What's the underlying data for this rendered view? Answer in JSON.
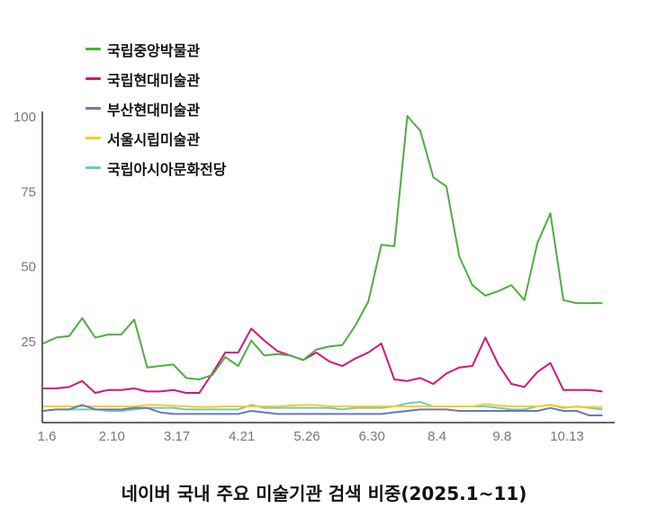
{
  "chart_data": {
    "type": "line",
    "title": "네이버 국내 주요 미술기관 검색 비중(2025.1~11)",
    "xlabel": "",
    "ylabel": "",
    "ylim": [
      0,
      100
    ],
    "yticks": [
      "25",
      "50",
      "75",
      "100"
    ],
    "xticks": [
      {
        "index": 0,
        "label": "1.6"
      },
      {
        "index": 5,
        "label": "2.10"
      },
      {
        "index": 10,
        "label": "3.17"
      },
      {
        "index": 15,
        "label": "4.21"
      },
      {
        "index": 20,
        "label": "5.26"
      },
      {
        "index": 25,
        "label": "6.30"
      },
      {
        "index": 30,
        "label": "8.4"
      },
      {
        "index": 35,
        "label": "9.8"
      },
      {
        "index": 40,
        "label": "10.13"
      }
    ],
    "legend_position": "top-left",
    "series": [
      {
        "name": "국립중앙박물관",
        "color": "#4caf3e",
        "values": [
          24,
          26,
          26.5,
          32.5,
          26,
          27,
          27,
          32,
          16,
          16.5,
          17,
          12.5,
          12,
          13.5,
          19.5,
          16.5,
          25,
          20,
          20.5,
          20,
          18.5,
          22,
          23,
          23.5,
          30,
          38,
          57,
          56.5,
          100,
          95,
          79.5,
          76.5,
          53,
          43.5,
          40,
          41.5,
          43.5,
          38.5,
          57.5,
          67.5,
          38.5,
          37.5,
          37.5,
          37.5
        ]
      },
      {
        "name": "국립현대미술관",
        "color": "#d4147a",
        "values": [
          9,
          9,
          9.5,
          11.5,
          7.5,
          8.5,
          8.5,
          9,
          8,
          8,
          8.5,
          7.5,
          7.5,
          14,
          21,
          21,
          29,
          25,
          21.5,
          20,
          18.5,
          21,
          18,
          16.5,
          19,
          21,
          24,
          12,
          11.5,
          12.5,
          10.5,
          14,
          16,
          16.5,
          26,
          17,
          10.5,
          9.5,
          14.5,
          17.5,
          8.5,
          8.5,
          8.5,
          8
        ]
      },
      {
        "name": "부산현대미술관",
        "color": "#6b78b8",
        "values": [
          1.5,
          2,
          2,
          3.5,
          2,
          2,
          2,
          2.5,
          2.5,
          1,
          0.5,
          0.5,
          0.5,
          0.5,
          0.5,
          0.5,
          1.5,
          1,
          0.5,
          0.5,
          0.5,
          0.5,
          0.5,
          0.5,
          0.5,
          0.5,
          0.5,
          1,
          1.5,
          2,
          2,
          2,
          1.5,
          1.5,
          1.5,
          1.5,
          1.5,
          1.5,
          1.5,
          2.5,
          1.5,
          1.5,
          0,
          0
        ]
      },
      {
        "name": "서울시립미술관",
        "color": "#f5cf1d",
        "values": [
          3,
          3,
          3,
          3,
          3,
          3,
          3,
          3,
          3.5,
          3.5,
          3.2,
          3,
          2.8,
          2.8,
          3,
          3,
          3,
          3,
          3,
          3.3,
          3.5,
          3.5,
          3,
          3,
          3,
          3,
          3,
          3,
          3,
          3,
          3,
          3,
          3,
          3,
          3.8,
          3.3,
          3,
          3,
          3,
          3.5,
          2.8,
          2.8,
          2.8,
          2.8
        ]
      },
      {
        "name": "국립아시아문화전당",
        "color": "#6cc9c9",
        "values": [
          1.5,
          2,
          2,
          2,
          2,
          1.5,
          1.5,
          2,
          2.5,
          2.5,
          2.5,
          2,
          2,
          2,
          2,
          2,
          3.5,
          2.5,
          2.5,
          2.5,
          2.5,
          2.5,
          2.5,
          2,
          2.5,
          2.5,
          2.5,
          3,
          4,
          4.5,
          3,
          3,
          3,
          3,
          3,
          2.5,
          2,
          2,
          3,
          3.5,
          2.5,
          3,
          2.5,
          2
        ]
      }
    ]
  }
}
